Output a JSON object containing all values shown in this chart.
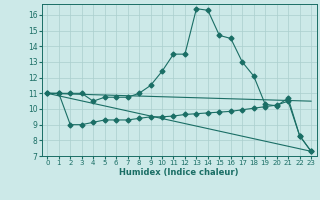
{
  "xlabel": "Humidex (Indice chaleur)",
  "background_color": "#cce9e8",
  "grid_color": "#aacfce",
  "line_color": "#1a6e65",
  "xlim": [
    -0.5,
    23.5
  ],
  "ylim": [
    7,
    16.7
  ],
  "yticks": [
    7,
    8,
    9,
    10,
    11,
    12,
    13,
    14,
    15,
    16
  ],
  "xticks": [
    0,
    1,
    2,
    3,
    4,
    5,
    6,
    7,
    8,
    9,
    10,
    11,
    12,
    13,
    14,
    15,
    16,
    17,
    18,
    19,
    20,
    21,
    22,
    23
  ],
  "series1_x": [
    0,
    1,
    2,
    3,
    4,
    5,
    6,
    7,
    8,
    9,
    10,
    11,
    12,
    13,
    14,
    15,
    16,
    17,
    18,
    19,
    20,
    21,
    22,
    23
  ],
  "series1_y": [
    11.0,
    11.0,
    11.0,
    11.0,
    10.5,
    10.75,
    10.75,
    10.75,
    11.0,
    11.5,
    12.4,
    13.5,
    13.5,
    16.4,
    16.3,
    14.7,
    14.5,
    13.0,
    12.1,
    10.3,
    10.2,
    10.7,
    8.3,
    7.3
  ],
  "series2_x": [
    0,
    1,
    2,
    3,
    4,
    5,
    6,
    7,
    8,
    9,
    10,
    11,
    12,
    13,
    14,
    15,
    16,
    17,
    18,
    19,
    20,
    21,
    22,
    23
  ],
  "series2_y": [
    11.0,
    11.0,
    9.0,
    9.0,
    9.15,
    9.3,
    9.3,
    9.3,
    9.4,
    9.5,
    9.5,
    9.55,
    9.65,
    9.7,
    9.75,
    9.8,
    9.85,
    9.95,
    10.05,
    10.15,
    10.25,
    10.5,
    8.3,
    7.3
  ],
  "series3_x": [
    0,
    23
  ],
  "series3_y": [
    11.0,
    7.3
  ],
  "series4_x": [
    0,
    23
  ],
  "series4_y": [
    11.0,
    10.5
  ]
}
